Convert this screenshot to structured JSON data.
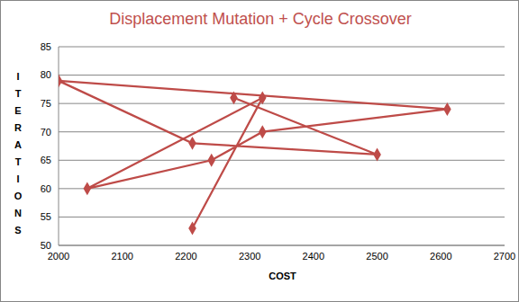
{
  "chart_data": {
    "type": "line",
    "title": "Displacement Mutation + Cycle Crossover",
    "x_label": "COST",
    "y_label": "ITERATIONS",
    "x": [
      2275,
      2500,
      2210,
      2000,
      2610,
      2320,
      2240,
      2045,
      2320,
      2210
    ],
    "values": [
      76,
      66,
      68,
      79,
      74,
      70,
      65,
      60,
      76,
      53
    ],
    "color": "#be4b48",
    "marker": "diamond",
    "line_style": "solid",
    "xlim": [
      2000,
      2700
    ],
    "xticks": [
      2000,
      2100,
      2200,
      2300,
      2400,
      2500,
      2600,
      2700
    ],
    "ylim": [
      50,
      85
    ],
    "yticks": [
      50,
      55,
      60,
      65,
      70,
      75,
      80,
      85
    ],
    "grid": true
  }
}
